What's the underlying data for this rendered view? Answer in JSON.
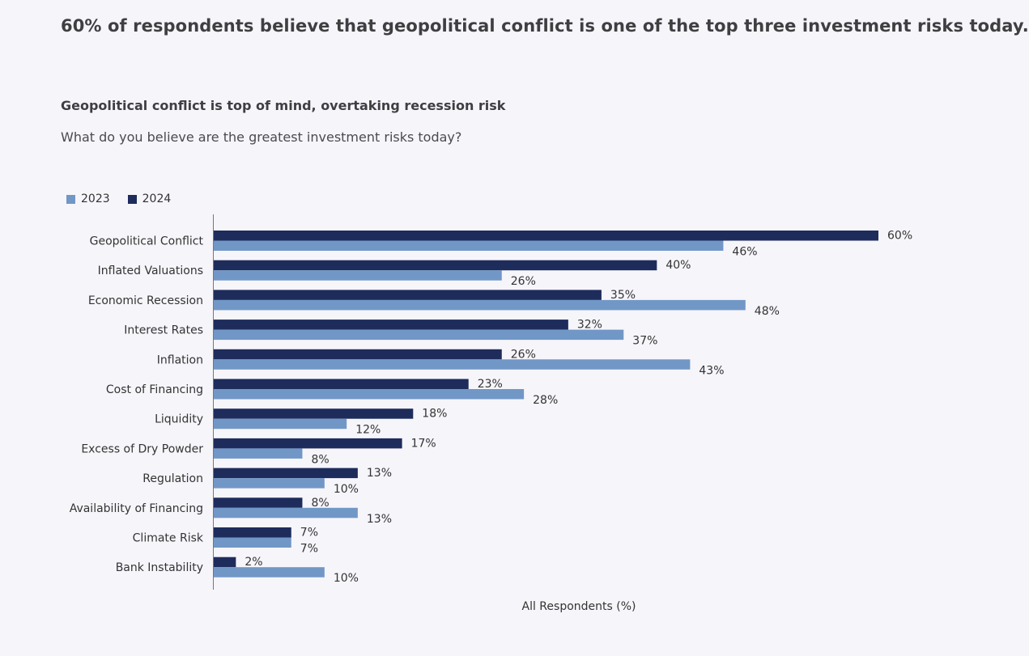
{
  "headline": "60% of respondents believe that geopolitical conflict is one of the top three investment risks today.",
  "chart_data": {
    "type": "bar",
    "orientation": "horizontal",
    "title": "Geopolitical conflict is top of mind, overtaking recession risk",
    "subtitle": "What do you believe are the greatest investment risks today?",
    "xlabel": "All Respondents (%)",
    "ylabel": "",
    "xlim": [
      0,
      60
    ],
    "grid": false,
    "legend_position": "top-left",
    "categories": [
      "Geopolitical Conflict",
      "Inflated Valuations",
      "Economic Recession",
      "Interest Rates",
      "Inflation",
      "Cost of Financing",
      "Liquidity",
      "Excess of Dry Powder",
      "Regulation",
      "Availability of Financing",
      "Climate Risk",
      "Bank Instability"
    ],
    "series": [
      {
        "name": "2023",
        "color": "#7197c6",
        "values": [
          46,
          26,
          48,
          37,
          43,
          28,
          12,
          8,
          10,
          13,
          7,
          10
        ]
      },
      {
        "name": "2024",
        "color": "#1e2c5c",
        "values": [
          60,
          40,
          35,
          32,
          26,
          23,
          18,
          17,
          13,
          8,
          7,
          2
        ]
      }
    ],
    "value_suffix": "%"
  }
}
